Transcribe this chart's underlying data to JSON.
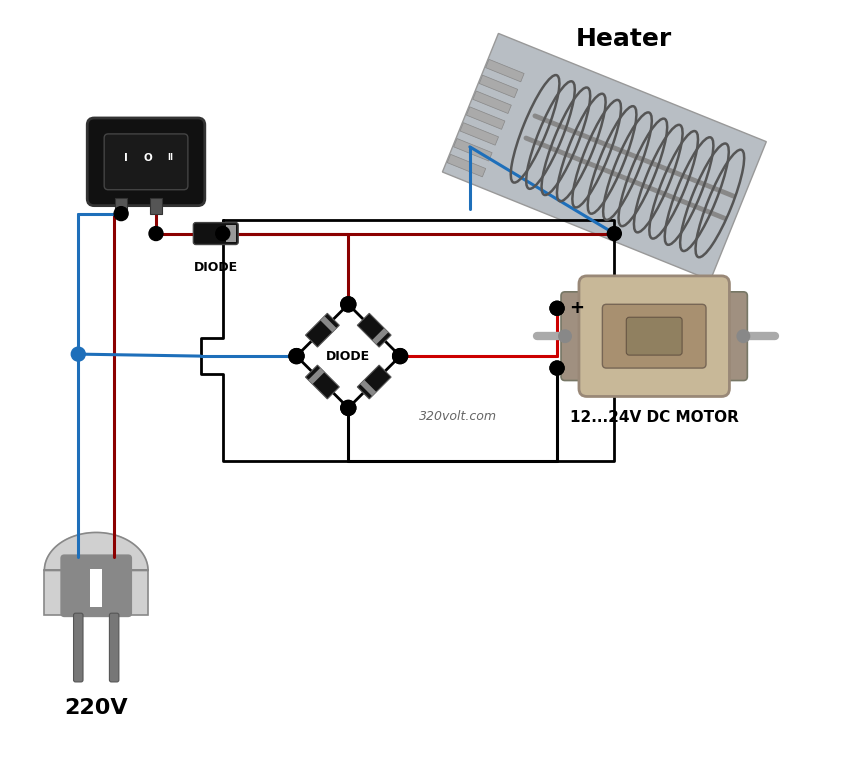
{
  "bg_color": "#ffffff",
  "wire_dark_red": "#8B0000",
  "wire_red": "#cc0000",
  "wire_blue": "#1e6fba",
  "wire_black": "#000000",
  "label_diode": "DIODE",
  "label_bridge_diode": "DIODE",
  "label_motor": "12...24V DC MOTOR",
  "label_heater": "Heater",
  "label_220v": "220V",
  "label_website": "320volt.com",
  "label_plus": "+",
  "heater_label_fontsize": 18,
  "motor_label_fontsize": 11,
  "v220_label_fontsize": 16,
  "fig_width": 8.61,
  "fig_height": 7.71,
  "lw_wire": 2.2,
  "dot_r": 0.07
}
